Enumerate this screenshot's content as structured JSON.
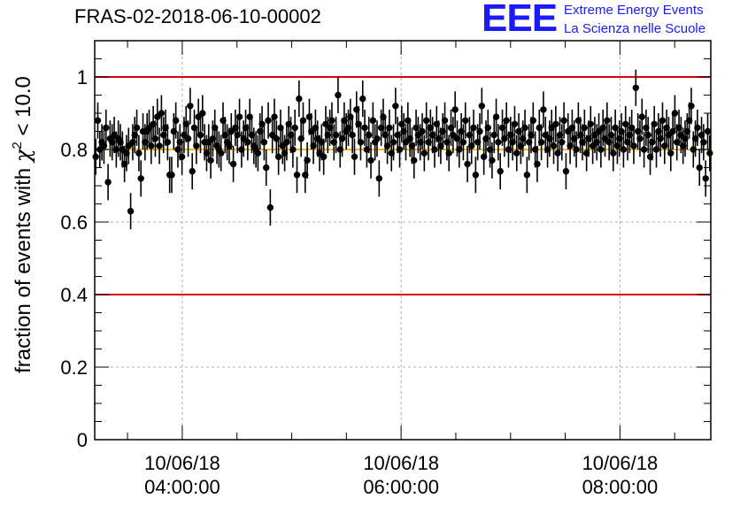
{
  "title": "FRAS-02-2018-06-10-00002",
  "logo": {
    "mark": "EEE",
    "line1": "Extreme Energy Events",
    "line2": "La Scienza nelle Scuole",
    "color": "#1a1aff"
  },
  "chart_data": {
    "type": "scatter",
    "ylabel_prefix": "fraction of events with ",
    "ylabel_symbol": "χ",
    "ylabel_sup": "2",
    "ylabel_suffix": " < 10.0",
    "ylim": [
      0,
      1.1
    ],
    "yticks": [
      0,
      0.2,
      0.4,
      0.6,
      0.8,
      1
    ],
    "ytick_labels": [
      "0",
      "0.2",
      "0.4",
      "0.6",
      "0.8",
      "1"
    ],
    "xlim_hours": [
      3.2,
      8.83
    ],
    "xticks": [
      {
        "hour": 4,
        "line1": "10/06/18",
        "line2": "04:00:00"
      },
      {
        "hour": 6,
        "line1": "10/06/18",
        "line2": "06:00:00"
      },
      {
        "hour": 8,
        "line1": "10/06/18",
        "line2": "08:00:00"
      }
    ],
    "grid": true,
    "reference_lines": [
      {
        "y": 1.0,
        "color": "#dd0000"
      },
      {
        "y": 0.8,
        "color": "#f5b800"
      },
      {
        "y": 0.4,
        "color": "#dd0000"
      }
    ],
    "series": [
      {
        "x_start_hour": 3.2,
        "x_end_hour": 8.83,
        "y": [
          0.78,
          0.88,
          0.8,
          0.82,
          0.81,
          0.86,
          0.71,
          0.83,
          0.82,
          0.84,
          0.8,
          0.83,
          0.82,
          0.8,
          0.76,
          0.79,
          0.81,
          0.63,
          0.82,
          0.84,
          0.86,
          0.79,
          0.72,
          0.85,
          0.82,
          0.85,
          0.86,
          0.81,
          0.87,
          0.83,
          0.89,
          0.81,
          0.9,
          0.84,
          0.86,
          0.82,
          0.73,
          0.73,
          0.85,
          0.88,
          0.8,
          0.82,
          0.78,
          0.84,
          0.87,
          0.83,
          0.92,
          0.74,
          0.86,
          0.81,
          0.89,
          0.84,
          0.9,
          0.82,
          0.79,
          0.82,
          0.77,
          0.83,
          0.86,
          0.81,
          0.8,
          0.79,
          0.88,
          0.84,
          0.82,
          0.81,
          0.85,
          0.76,
          0.86,
          0.84,
          0.89,
          0.8,
          0.83,
          0.86,
          0.82,
          0.89,
          0.84,
          0.81,
          0.8,
          0.79,
          0.85,
          0.87,
          0.82,
          0.75,
          0.88,
          0.64,
          0.84,
          0.89,
          0.83,
          0.78,
          0.86,
          0.81,
          0.79,
          0.82,
          0.87,
          0.84,
          0.8,
          0.86,
          0.73,
          0.94,
          0.83,
          0.88,
          0.73,
          0.77,
          0.89,
          0.85,
          0.81,
          0.86,
          0.83,
          0.79,
          0.82,
          0.78,
          0.87,
          0.84,
          0.86,
          0.88,
          0.82,
          0.84,
          0.95,
          0.8,
          0.83,
          0.88,
          0.85,
          0.86,
          0.89,
          0.84,
          0.78,
          0.91,
          0.87,
          0.82,
          0.94,
          0.86,
          0.8,
          0.84,
          0.77,
          0.88,
          0.82,
          0.83,
          0.72,
          0.86,
          0.89,
          0.84,
          0.81,
          0.86,
          0.79,
          0.82,
          0.92,
          0.84,
          0.8,
          0.87,
          0.85,
          0.82,
          0.88,
          0.83,
          0.81,
          0.77,
          0.86,
          0.84,
          0.82,
          0.85,
          0.79,
          0.88,
          0.82,
          0.86,
          0.84,
          0.8,
          0.87,
          0.83,
          0.81,
          0.85,
          0.88,
          0.82,
          0.79,
          0.86,
          0.84,
          0.91,
          0.83,
          0.8,
          0.85,
          0.82,
          0.88,
          0.76,
          0.84,
          0.81,
          0.86,
          0.73,
          0.82,
          0.85,
          0.92,
          0.78,
          0.83,
          0.86,
          0.8,
          0.77,
          0.84,
          0.89,
          0.82,
          0.74,
          0.86,
          0.83,
          0.88,
          0.8,
          0.84,
          0.82,
          0.87,
          0.79,
          0.85,
          0.81,
          0.83,
          0.86,
          0.73,
          0.82,
          0.84,
          0.88,
          0.8,
          0.76,
          0.86,
          0.82,
          0.91,
          0.84,
          0.8,
          0.83,
          0.86,
          0.81,
          0.87,
          0.79,
          0.84,
          0.82,
          0.88,
          0.74,
          0.85,
          0.81,
          0.86,
          0.83,
          0.8,
          0.88,
          0.84,
          0.82,
          0.86,
          0.79,
          0.83,
          0.87,
          0.81,
          0.84,
          0.82,
          0.85,
          0.8,
          0.86,
          0.83,
          0.88,
          0.82,
          0.84,
          0.79,
          0.86,
          0.81,
          0.83,
          0.85,
          0.8,
          0.87,
          0.82,
          0.84,
          0.86,
          0.81,
          0.97,
          0.85,
          0.83,
          0.89,
          0.8,
          0.86,
          0.84,
          0.78,
          0.82,
          0.87,
          0.8,
          0.85,
          0.83,
          0.88,
          0.81,
          0.86,
          0.84,
          0.79,
          0.85,
          0.9,
          0.82,
          0.86,
          0.84,
          0.81,
          0.83,
          0.85,
          0.88,
          0.92,
          0.8,
          0.83,
          0.86,
          0.75,
          0.84,
          0.82,
          0.72,
          0.85,
          0.79
        ],
        "yerr": 0.05
      }
    ]
  }
}
